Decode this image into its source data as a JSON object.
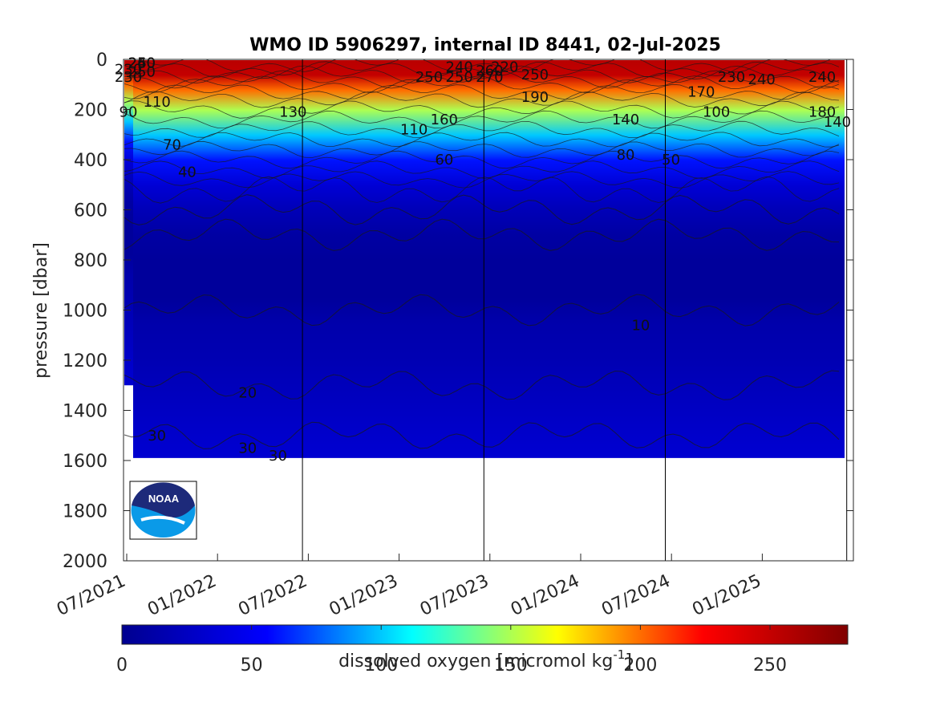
{
  "chart_data": {
    "type": "heatmap",
    "title": "WMO ID 5906297, internal ID 8441, 02-Jul-2025",
    "ylabel": "pressure [dbar]",
    "colorbar_label": "dissolved oxygen [micromol kg⁻¹]",
    "colorbar_label_text": "dissolved oxygen [micromol kg",
    "colorbar_label_sup": "-1",
    "colorbar_label_end": "]",
    "y_ticks": [
      "0",
      "200",
      "400",
      "600",
      "800",
      "1000",
      "1200",
      "1400",
      "1600",
      "1800",
      "2000"
    ],
    "y_range": [
      0,
      2000
    ],
    "y_reversed": true,
    "x_ticks": [
      "07/2021",
      "01/2022",
      "07/2022",
      "01/2023",
      "07/2023",
      "01/2024",
      "07/2024",
      "01/2025"
    ],
    "year_boundaries": [
      "01/2022",
      "01/2023",
      "01/2024",
      "01/2025"
    ],
    "colorbar_ticks": [
      "0",
      "50",
      "100",
      "150",
      "200",
      "250"
    ],
    "colorbar_range": [
      0,
      280
    ],
    "colormap": [
      "#00008f",
      "#0000ff",
      "#00ffff",
      "#ffff00",
      "#ff0000",
      "#800000"
    ],
    "max_pressure": 1590,
    "profile_oxygen": [
      {
        "pressure": 0,
        "oxygen": 255
      },
      {
        "pressure": 60,
        "oxygen": 250
      },
      {
        "pressure": 120,
        "oxygen": 200
      },
      {
        "pressure": 200,
        "oxygen": 150
      },
      {
        "pressure": 300,
        "oxygen": 100
      },
      {
        "pressure": 400,
        "oxygen": 60
      },
      {
        "pressure": 500,
        "oxygen": 35
      },
      {
        "pressure": 600,
        "oxygen": 20
      },
      {
        "pressure": 700,
        "oxygen": 10
      },
      {
        "pressure": 800,
        "oxygen": 6
      },
      {
        "pressure": 950,
        "oxygen": 6
      },
      {
        "pressure": 1050,
        "oxygen": 14
      },
      {
        "pressure": 1200,
        "oxygen": 18
      },
      {
        "pressure": 1350,
        "oxygen": 24
      },
      {
        "pressure": 1500,
        "oxygen": 30
      },
      {
        "pressure": 1590,
        "oxygen": 33
      }
    ],
    "contour_labels": [
      {
        "text": "250",
        "x": "08/2021",
        "y": 15
      },
      {
        "text": "260",
        "x": "08/2021",
        "y": 15
      },
      {
        "text": "240",
        "x": "08/2021",
        "y": 15
      },
      {
        "text": "230",
        "x": "07/2021",
        "y": 40
      },
      {
        "text": "250",
        "x": "08/2021",
        "y": 50
      },
      {
        "text": "230",
        "x": "07/2021",
        "y": 70
      },
      {
        "text": "90",
        "x": "07/2021",
        "y": 210
      },
      {
        "text": "110",
        "x": "09/2021",
        "y": 170
      },
      {
        "text": "70",
        "x": "10/2021",
        "y": 340
      },
      {
        "text": "40",
        "x": "11/2021",
        "y": 450
      },
      {
        "text": "130",
        "x": "06/2022",
        "y": 210
      },
      {
        "text": "240",
        "x": "05/2023",
        "y": 30
      },
      {
        "text": "250",
        "x": "03/2023",
        "y": 70
      },
      {
        "text": "250",
        "x": "05/2023",
        "y": 70
      },
      {
        "text": "270",
        "x": "07/2023",
        "y": 70
      },
      {
        "text": "260",
        "x": "07/2023",
        "y": 45
      },
      {
        "text": "220",
        "x": "08/2023",
        "y": 30
      },
      {
        "text": "250",
        "x": "10/2023",
        "y": 60
      },
      {
        "text": "190",
        "x": "10/2023",
        "y": 150
      },
      {
        "text": "160",
        "x": "04/2023",
        "y": 240
      },
      {
        "text": "110",
        "x": "02/2023",
        "y": 280
      },
      {
        "text": "60",
        "x": "04/2023",
        "y": 400
      },
      {
        "text": "140",
        "x": "04/2024",
        "y": 240
      },
      {
        "text": "80",
        "x": "04/2024",
        "y": 380
      },
      {
        "text": "10",
        "x": "05/2024",
        "y": 1060
      },
      {
        "text": "50",
        "x": "07/2024",
        "y": 400
      },
      {
        "text": "170",
        "x": "09/2024",
        "y": 130
      },
      {
        "text": "100",
        "x": "10/2024",
        "y": 210
      },
      {
        "text": "230",
        "x": "11/2024",
        "y": 70
      },
      {
        "text": "240",
        "x": "01/2025",
        "y": 80
      },
      {
        "text": "240",
        "x": "05/2025",
        "y": 70
      },
      {
        "text": "180",
        "x": "05/2025",
        "y": 210
      },
      {
        "text": "140",
        "x": "06/2025",
        "y": 250
      },
      {
        "text": "20",
        "x": "03/2022",
        "y": 1330
      },
      {
        "text": "30",
        "x": "09/2021",
        "y": 1500
      },
      {
        "text": "30",
        "x": "03/2022",
        "y": 1550
      },
      {
        "text": "30",
        "x": "05/2022",
        "y": 1580
      }
    ]
  },
  "logo": {
    "text": "NOAA"
  }
}
